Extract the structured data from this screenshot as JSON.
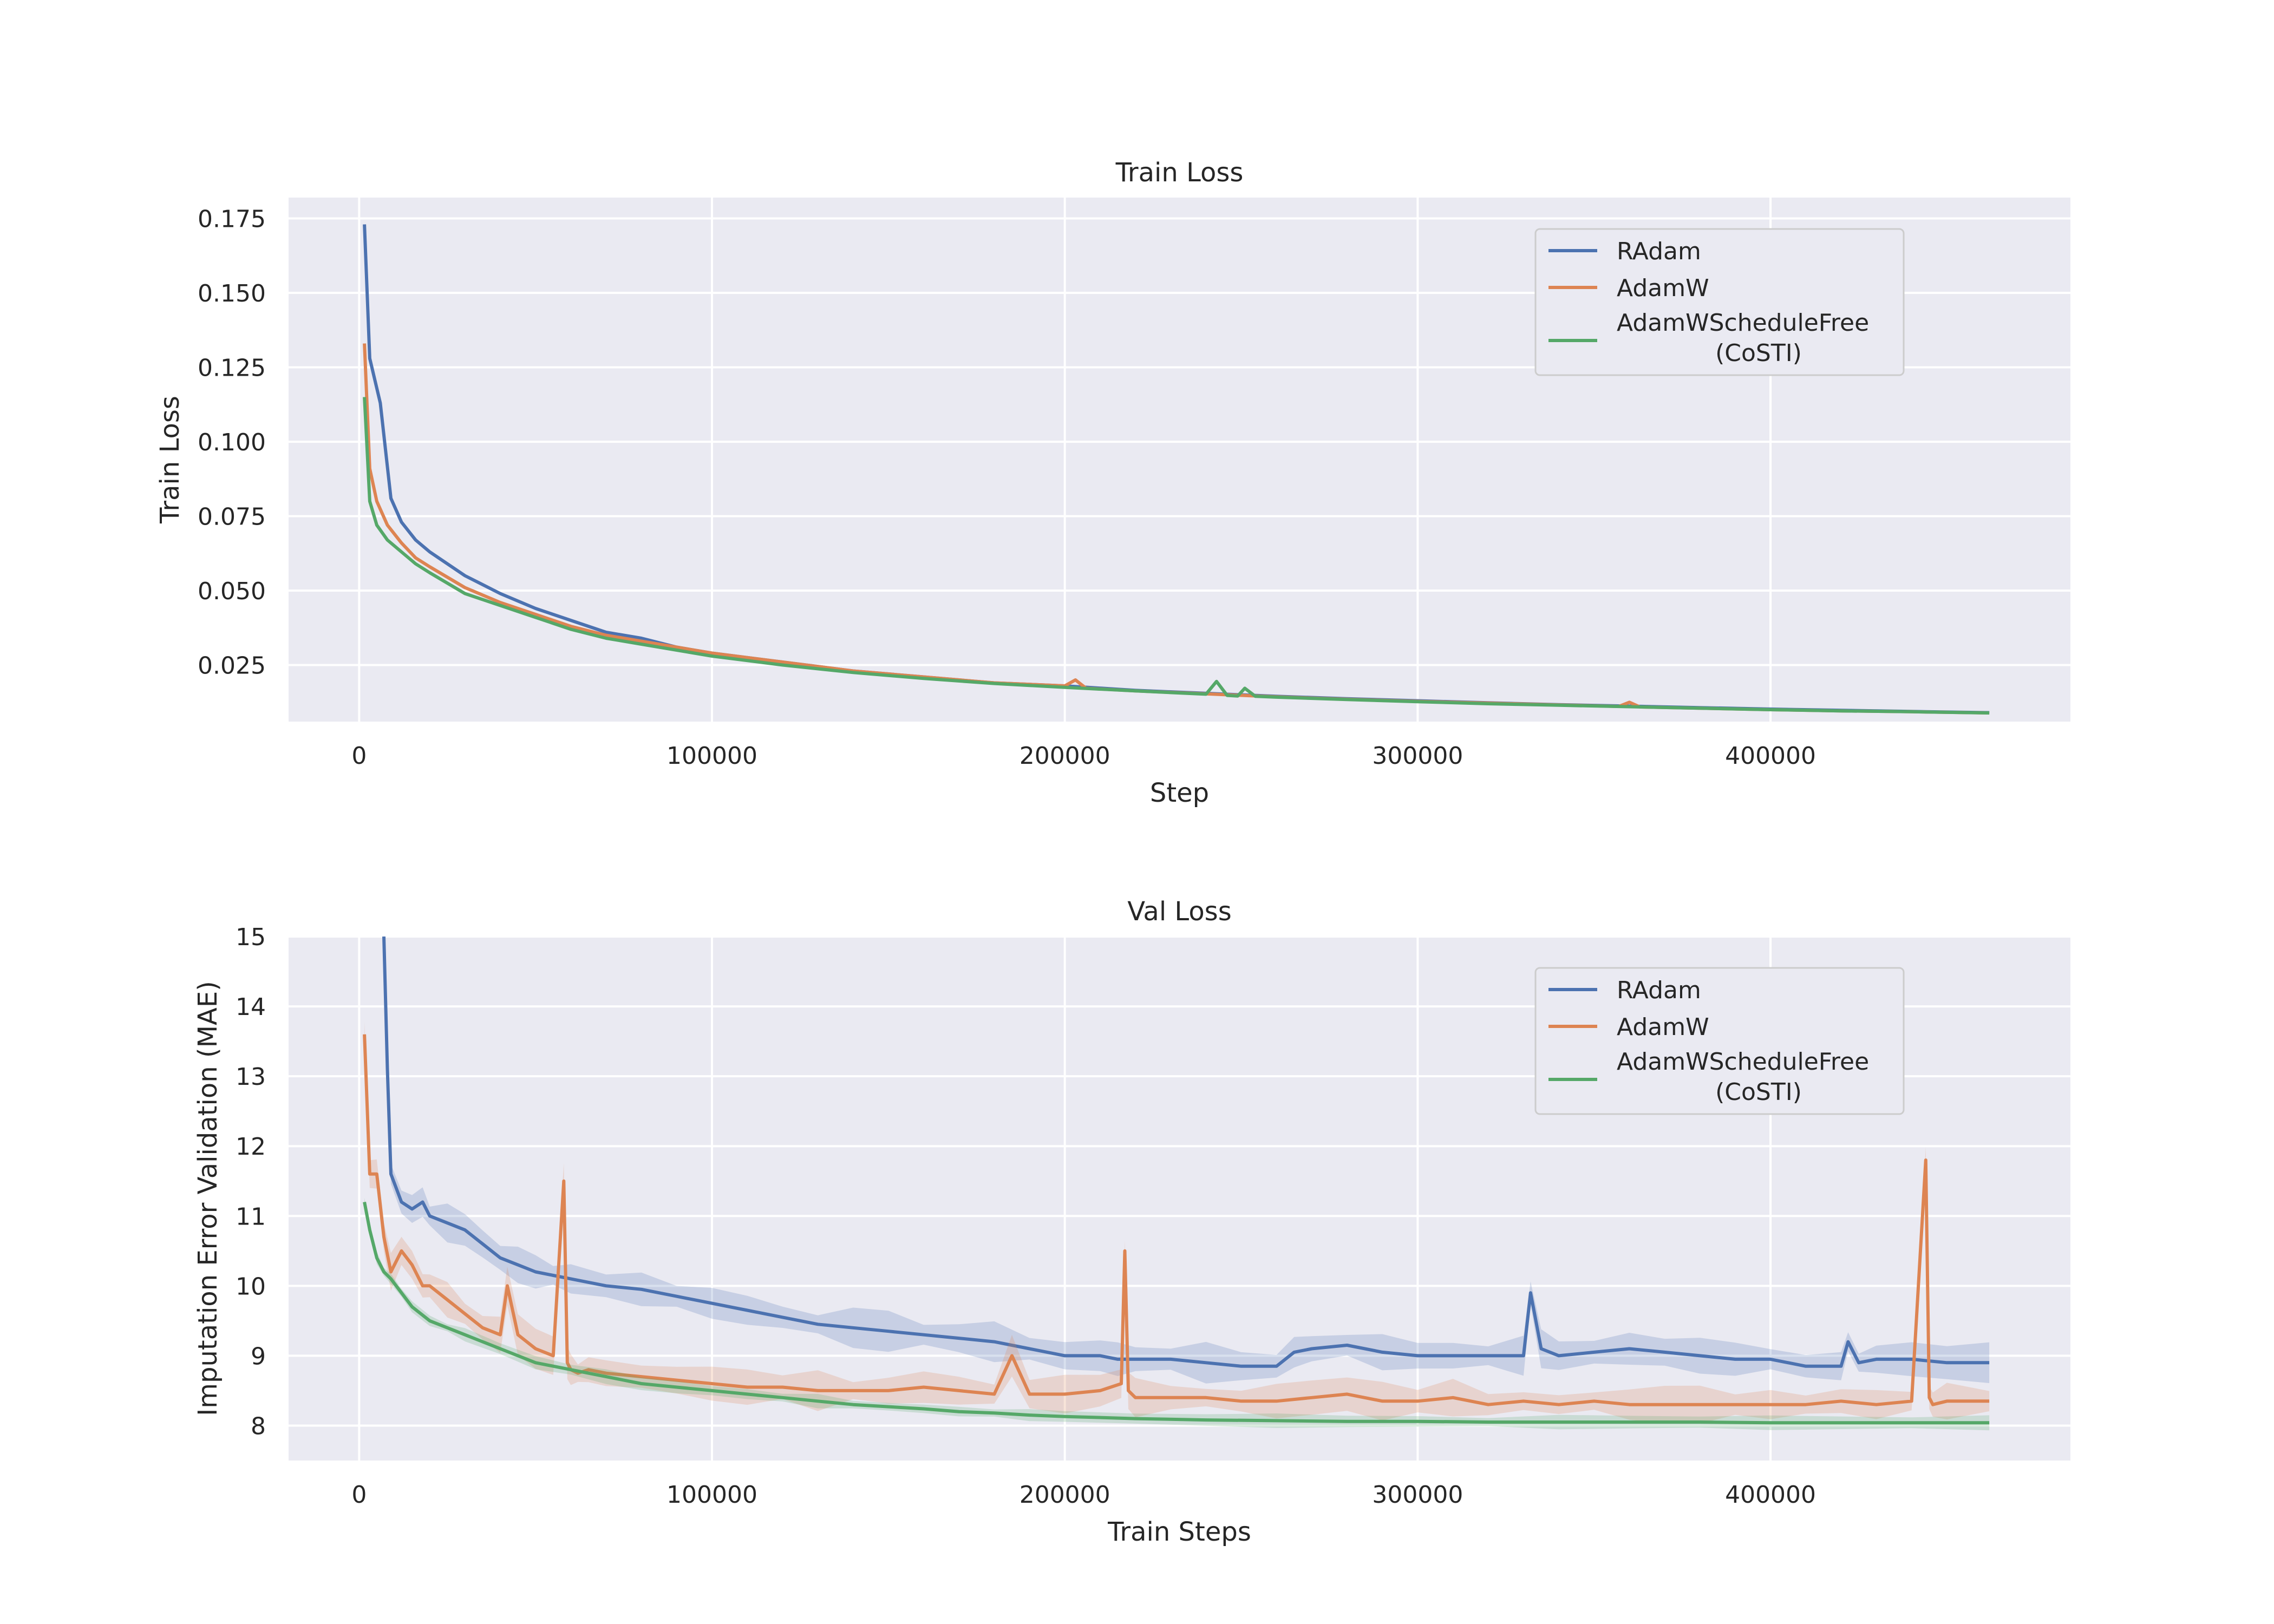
{
  "colors": {
    "radam": "#4c72b0",
    "adamw": "#dd8452",
    "costi": "#55a868",
    "plot_bg": "#eaeaf2",
    "grid": "#ffffff"
  },
  "chart_data": [
    {
      "type": "line",
      "title": "Train Loss",
      "xlabel": "Step",
      "ylabel": "Train Loss",
      "xlim": [
        -20000,
        485000
      ],
      "ylim": [
        0.006,
        0.182
      ],
      "xticks": [
        0,
        100000,
        200000,
        300000,
        400000
      ],
      "xtick_labels": [
        "0",
        "100000",
        "200000",
        "300000",
        "400000"
      ],
      "yticks": [
        0.025,
        0.05,
        0.075,
        0.1,
        0.125,
        0.15,
        0.175
      ],
      "ytick_labels": [
        "0.025",
        "0.050",
        "0.075",
        "0.100",
        "0.125",
        "0.150",
        "0.175"
      ],
      "grid": true,
      "legend_position": "top-right",
      "legend": [
        "RAdam",
        "AdamW",
        "AdamWScheduleFree",
        "(CoSTI)"
      ],
      "series": [
        {
          "name": "RAdam",
          "color": "#4c72b0",
          "x": [
            1500,
            3000,
            6000,
            9000,
            12000,
            16000,
            20000,
            30000,
            40000,
            50000,
            60000,
            70000,
            80000,
            90000,
            100000,
            120000,
            140000,
            160000,
            180000,
            200000,
            220000,
            240000,
            260000,
            280000,
            300000,
            320000,
            340000,
            360000,
            380000,
            400000,
            420000,
            440000,
            462000
          ],
          "y": [
            0.173,
            0.128,
            0.113,
            0.081,
            0.073,
            0.067,
            0.063,
            0.055,
            0.049,
            0.044,
            0.04,
            0.036,
            0.034,
            0.031,
            0.029,
            0.026,
            0.023,
            0.021,
            0.019,
            0.018,
            0.0165,
            0.0155,
            0.0145,
            0.0137,
            0.013,
            0.0123,
            0.0117,
            0.0112,
            0.0107,
            0.0102,
            0.0098,
            0.0094,
            0.009
          ]
        },
        {
          "name": "AdamW",
          "color": "#dd8452",
          "x": [
            1500,
            3000,
            5000,
            8000,
            12000,
            16000,
            20000,
            30000,
            40000,
            50000,
            60000,
            70000,
            80000,
            90000,
            100000,
            120000,
            140000,
            160000,
            180000,
            200000,
            203000,
            206000,
            220000,
            240000,
            260000,
            280000,
            300000,
            320000,
            340000,
            357000,
            360000,
            363000,
            380000,
            400000,
            420000,
            440000,
            462000
          ],
          "y": [
            0.133,
            0.091,
            0.08,
            0.072,
            0.066,
            0.061,
            0.058,
            0.051,
            0.046,
            0.042,
            0.038,
            0.035,
            0.033,
            0.031,
            0.029,
            0.026,
            0.023,
            0.021,
            0.019,
            0.018,
            0.02,
            0.0172,
            0.0163,
            0.0153,
            0.0143,
            0.0135,
            0.0128,
            0.0122,
            0.0116,
            0.0111,
            0.0125,
            0.0109,
            0.0105,
            0.01,
            0.0096,
            0.0093,
            0.0089
          ]
        },
        {
          "name": "AdamWScheduleFree (CoSTI)",
          "color": "#55a868",
          "x": [
            1500,
            3000,
            5000,
            8000,
            12000,
            16000,
            20000,
            30000,
            40000,
            50000,
            60000,
            70000,
            80000,
            90000,
            100000,
            120000,
            140000,
            160000,
            180000,
            200000,
            220000,
            240000,
            243000,
            246000,
            249000,
            251000,
            254000,
            260000,
            280000,
            300000,
            320000,
            340000,
            360000,
            380000,
            400000,
            420000,
            440000,
            462000
          ],
          "y": [
            0.115,
            0.08,
            0.072,
            0.067,
            0.063,
            0.059,
            0.056,
            0.049,
            0.045,
            0.041,
            0.037,
            0.034,
            0.032,
            0.03,
            0.028,
            0.025,
            0.0225,
            0.0205,
            0.0188,
            0.0175,
            0.0163,
            0.0152,
            0.0195,
            0.0148,
            0.0146,
            0.0172,
            0.0145,
            0.0142,
            0.0134,
            0.0127,
            0.012,
            0.0115,
            0.011,
            0.0105,
            0.01,
            0.0096,
            0.0093,
            0.0089
          ]
        }
      ]
    },
    {
      "type": "line",
      "title": "Val Loss",
      "xlabel": "Train Steps",
      "ylabel": "Imputation Error Validation (MAE)",
      "xlim": [
        -20000,
        485000
      ],
      "ylim": [
        7.5,
        15.0
      ],
      "xticks": [
        0,
        100000,
        200000,
        300000,
        400000
      ],
      "xtick_labels": [
        "0",
        "100000",
        "200000",
        "300000",
        "400000"
      ],
      "yticks": [
        8,
        9,
        10,
        11,
        12,
        13,
        14,
        15
      ],
      "ytick_labels": [
        "8",
        "9",
        "10",
        "11",
        "12",
        "13",
        "14",
        "15"
      ],
      "grid": true,
      "legend_position": "top-right",
      "legend": [
        "RAdam",
        "AdamW",
        "AdamWScheduleFree",
        "(CoSTI)"
      ],
      "series": [
        {
          "name": "RAdam",
          "color": "#4c72b0",
          "band": true,
          "x": [
            7000,
            8000,
            9000,
            12000,
            15000,
            18000,
            20000,
            25000,
            30000,
            35000,
            40000,
            45000,
            50000,
            55000,
            60000,
            70000,
            80000,
            90000,
            100000,
            110000,
            120000,
            130000,
            140000,
            150000,
            160000,
            170000,
            180000,
            190000,
            200000,
            210000,
            215000,
            220000,
            230000,
            240000,
            250000,
            260000,
            265000,
            270000,
            280000,
            290000,
            300000,
            310000,
            320000,
            330000,
            332000,
            335000,
            340000,
            350000,
            360000,
            370000,
            380000,
            390000,
            400000,
            410000,
            420000,
            422000,
            425000,
            430000,
            440000,
            450000,
            462000
          ],
          "y": [
            15.0,
            13.1,
            11.6,
            11.2,
            11.1,
            11.2,
            11.0,
            10.9,
            10.8,
            10.6,
            10.4,
            10.3,
            10.2,
            10.15,
            10.1,
            10.0,
            9.95,
            9.85,
            9.75,
            9.65,
            9.55,
            9.45,
            9.4,
            9.35,
            9.3,
            9.25,
            9.2,
            9.1,
            9.0,
            9.0,
            8.95,
            8.95,
            8.95,
            8.9,
            8.85,
            8.85,
            9.05,
            9.1,
            9.15,
            9.05,
            9.0,
            9.0,
            9.0,
            9.0,
            9.9,
            9.1,
            9.0,
            9.05,
            9.1,
            9.05,
            9.0,
            8.95,
            8.95,
            8.85,
            8.85,
            9.2,
            8.9,
            8.95,
            8.95,
            8.9,
            8.9
          ]
        },
        {
          "name": "AdamW",
          "color": "#dd8452",
          "band": true,
          "x": [
            1500,
            3000,
            5000,
            7000,
            9000,
            12000,
            15000,
            18000,
            20000,
            25000,
            30000,
            35000,
            40000,
            42000,
            45000,
            50000,
            55000,
            58000,
            59000,
            60000,
            62000,
            65000,
            70000,
            80000,
            90000,
            100000,
            110000,
            120000,
            130000,
            140000,
            150000,
            160000,
            170000,
            180000,
            185000,
            190000,
            200000,
            210000,
            216000,
            217000,
            218000,
            220000,
            230000,
            240000,
            250000,
            260000,
            270000,
            280000,
            290000,
            300000,
            310000,
            320000,
            330000,
            340000,
            350000,
            360000,
            370000,
            380000,
            390000,
            400000,
            410000,
            420000,
            430000,
            440000,
            444000,
            445000,
            446000,
            450000,
            462000
          ],
          "y": [
            13.6,
            11.6,
            11.6,
            10.7,
            10.2,
            10.5,
            10.3,
            10.0,
            10.0,
            9.8,
            9.6,
            9.4,
            9.3,
            10.0,
            9.3,
            9.1,
            9.0,
            11.5,
            8.9,
            8.8,
            8.75,
            8.8,
            8.75,
            8.7,
            8.65,
            8.6,
            8.55,
            8.55,
            8.5,
            8.5,
            8.5,
            8.55,
            8.5,
            8.45,
            9.0,
            8.45,
            8.45,
            8.5,
            8.6,
            10.5,
            8.5,
            8.4,
            8.4,
            8.4,
            8.35,
            8.35,
            8.4,
            8.45,
            8.35,
            8.35,
            8.4,
            8.3,
            8.35,
            8.3,
            8.35,
            8.3,
            8.3,
            8.3,
            8.3,
            8.3,
            8.3,
            8.35,
            8.3,
            8.35,
            11.8,
            8.4,
            8.3,
            8.35,
            8.35
          ]
        },
        {
          "name": "AdamWScheduleFree (CoSTI)",
          "color": "#55a868",
          "band": true,
          "x": [
            1500,
            3000,
            5000,
            7000,
            9000,
            12000,
            15000,
            20000,
            25000,
            30000,
            40000,
            50000,
            60000,
            70000,
            80000,
            90000,
            100000,
            110000,
            120000,
            130000,
            140000,
            150000,
            160000,
            170000,
            180000,
            190000,
            200000,
            220000,
            240000,
            260000,
            280000,
            300000,
            320000,
            340000,
            360000,
            380000,
            400000,
            420000,
            440000,
            462000
          ],
          "y": [
            11.2,
            10.8,
            10.4,
            10.2,
            10.1,
            9.9,
            9.7,
            9.5,
            9.4,
            9.3,
            9.1,
            8.9,
            8.8,
            8.7,
            8.6,
            8.55,
            8.5,
            8.45,
            8.4,
            8.35,
            8.3,
            8.27,
            8.24,
            8.2,
            8.18,
            8.15,
            8.13,
            8.1,
            8.08,
            8.07,
            8.06,
            8.06,
            8.05,
            8.05,
            8.05,
            8.05,
            8.04,
            8.04,
            8.04,
            8.04
          ]
        }
      ]
    }
  ]
}
